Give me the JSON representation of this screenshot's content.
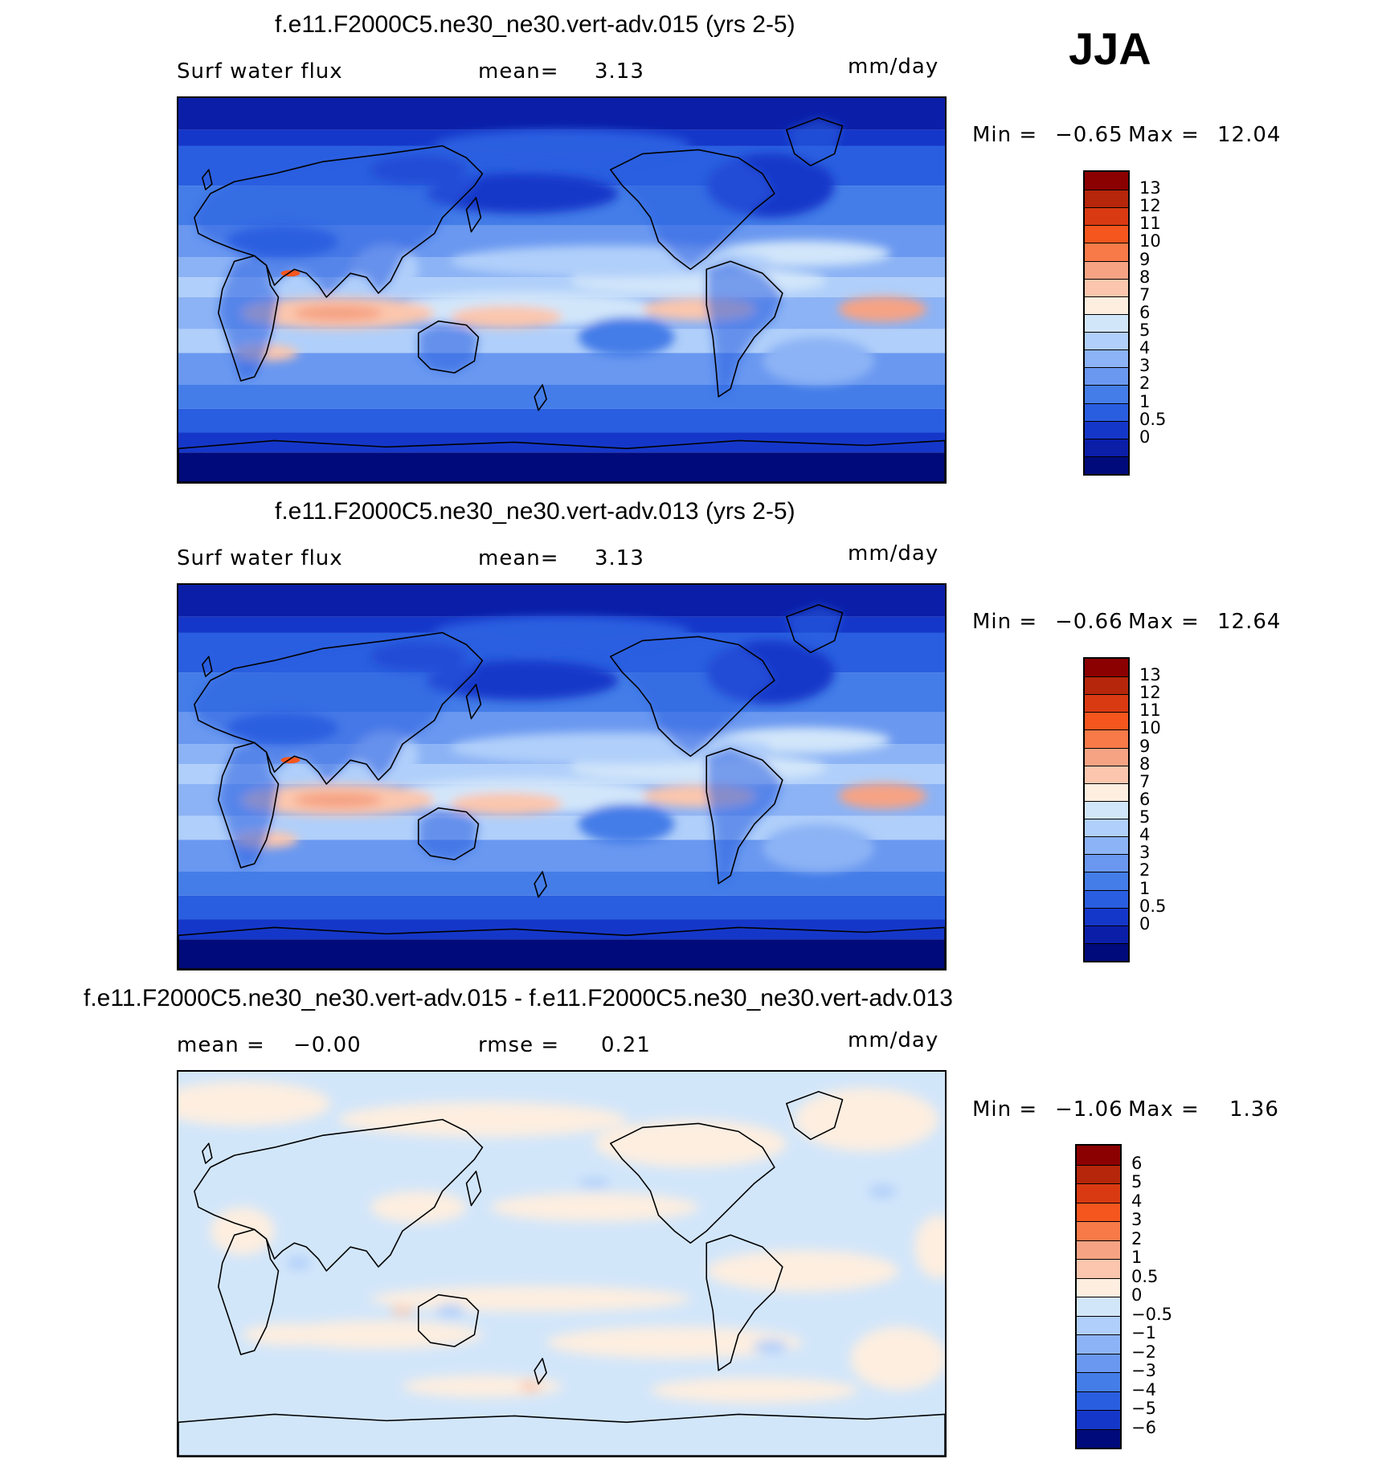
{
  "season": "JJA",
  "units": "mm/day",
  "panels": [
    {
      "id": "top",
      "title": "f.e11.F2000C5.ne30_ne30.vert-adv.015 (yrs 2-5)",
      "left_label": "Surf water flux",
      "mid_label": "mean=",
      "mid_value": "3.13",
      "units": "mm/day",
      "minmax": {
        "min_label": "Min =",
        "min_value": "−0.65",
        "max_label": "Max =",
        "max_value": "12.04"
      },
      "colorbar": {
        "labels": [
          "13",
          "12",
          "11",
          "10",
          "9",
          "8",
          "7",
          "6",
          "5",
          "4",
          "3",
          "2",
          "1",
          "0.5",
          "0"
        ],
        "colors": [
          "#8b0000",
          "#b5260a",
          "#d93a12",
          "#f4561e",
          "#f77a48",
          "#f6a384",
          "#fbc6ad",
          "#fdeee0",
          "#d2e6fa",
          "#b0cffa",
          "#8cb3f5",
          "#6a98f0",
          "#447de8",
          "#2a5ee0",
          "#1537c9",
          "#0a1ea8",
          "#000a7a"
        ]
      },
      "map_style": "precip"
    },
    {
      "id": "middle",
      "title": "f.e11.F2000C5.ne30_ne30.vert-adv.013 (yrs 2-5)",
      "left_label": "Surf water flux",
      "mid_label": "mean=",
      "mid_value": "3.13",
      "units": "mm/day",
      "minmax": {
        "min_label": "Min =",
        "min_value": "−0.66",
        "max_label": "Max =",
        "max_value": "12.64"
      },
      "colorbar": {
        "labels": [
          "13",
          "12",
          "11",
          "10",
          "9",
          "8",
          "7",
          "6",
          "5",
          "4",
          "3",
          "2",
          "1",
          "0.5",
          "0"
        ],
        "colors": [
          "#8b0000",
          "#b5260a",
          "#d93a12",
          "#f4561e",
          "#f77a48",
          "#f6a384",
          "#fbc6ad",
          "#fdeee0",
          "#d2e6fa",
          "#b0cffa",
          "#8cb3f5",
          "#6a98f0",
          "#447de8",
          "#2a5ee0",
          "#1537c9",
          "#0a1ea8",
          "#000a7a"
        ]
      },
      "map_style": "precip"
    },
    {
      "id": "bottom",
      "title": "f.e11.F2000C5.ne30_ne30.vert-adv.015 - f.e11.F2000C5.ne30_ne30.vert-adv.013",
      "left_label": "mean =",
      "left_value": "−0.00",
      "mid_label": "rmse =",
      "mid_value": "0.21",
      "units": "mm/day",
      "minmax": {
        "min_label": "Min =",
        "min_value": "−1.06",
        "max_label": "Max =",
        "max_value": "1.36"
      },
      "colorbar": {
        "labels": [
          "6",
          "5",
          "4",
          "3",
          "2",
          "1",
          "0.5",
          "0",
          "−0.5",
          "−1",
          "−2",
          "−3",
          "−4",
          "−5",
          "−6"
        ],
        "colors": [
          "#8b0000",
          "#b5260a",
          "#d93a12",
          "#f4561e",
          "#f77a48",
          "#f6a384",
          "#fbc6ad",
          "#fdeee0",
          "#d2e6fa",
          "#b0cffa",
          "#8cb3f5",
          "#6a98f0",
          "#447de8",
          "#2a5ee0",
          "#1537c9",
          "#000a7a"
        ]
      },
      "map_style": "diff"
    }
  ]
}
